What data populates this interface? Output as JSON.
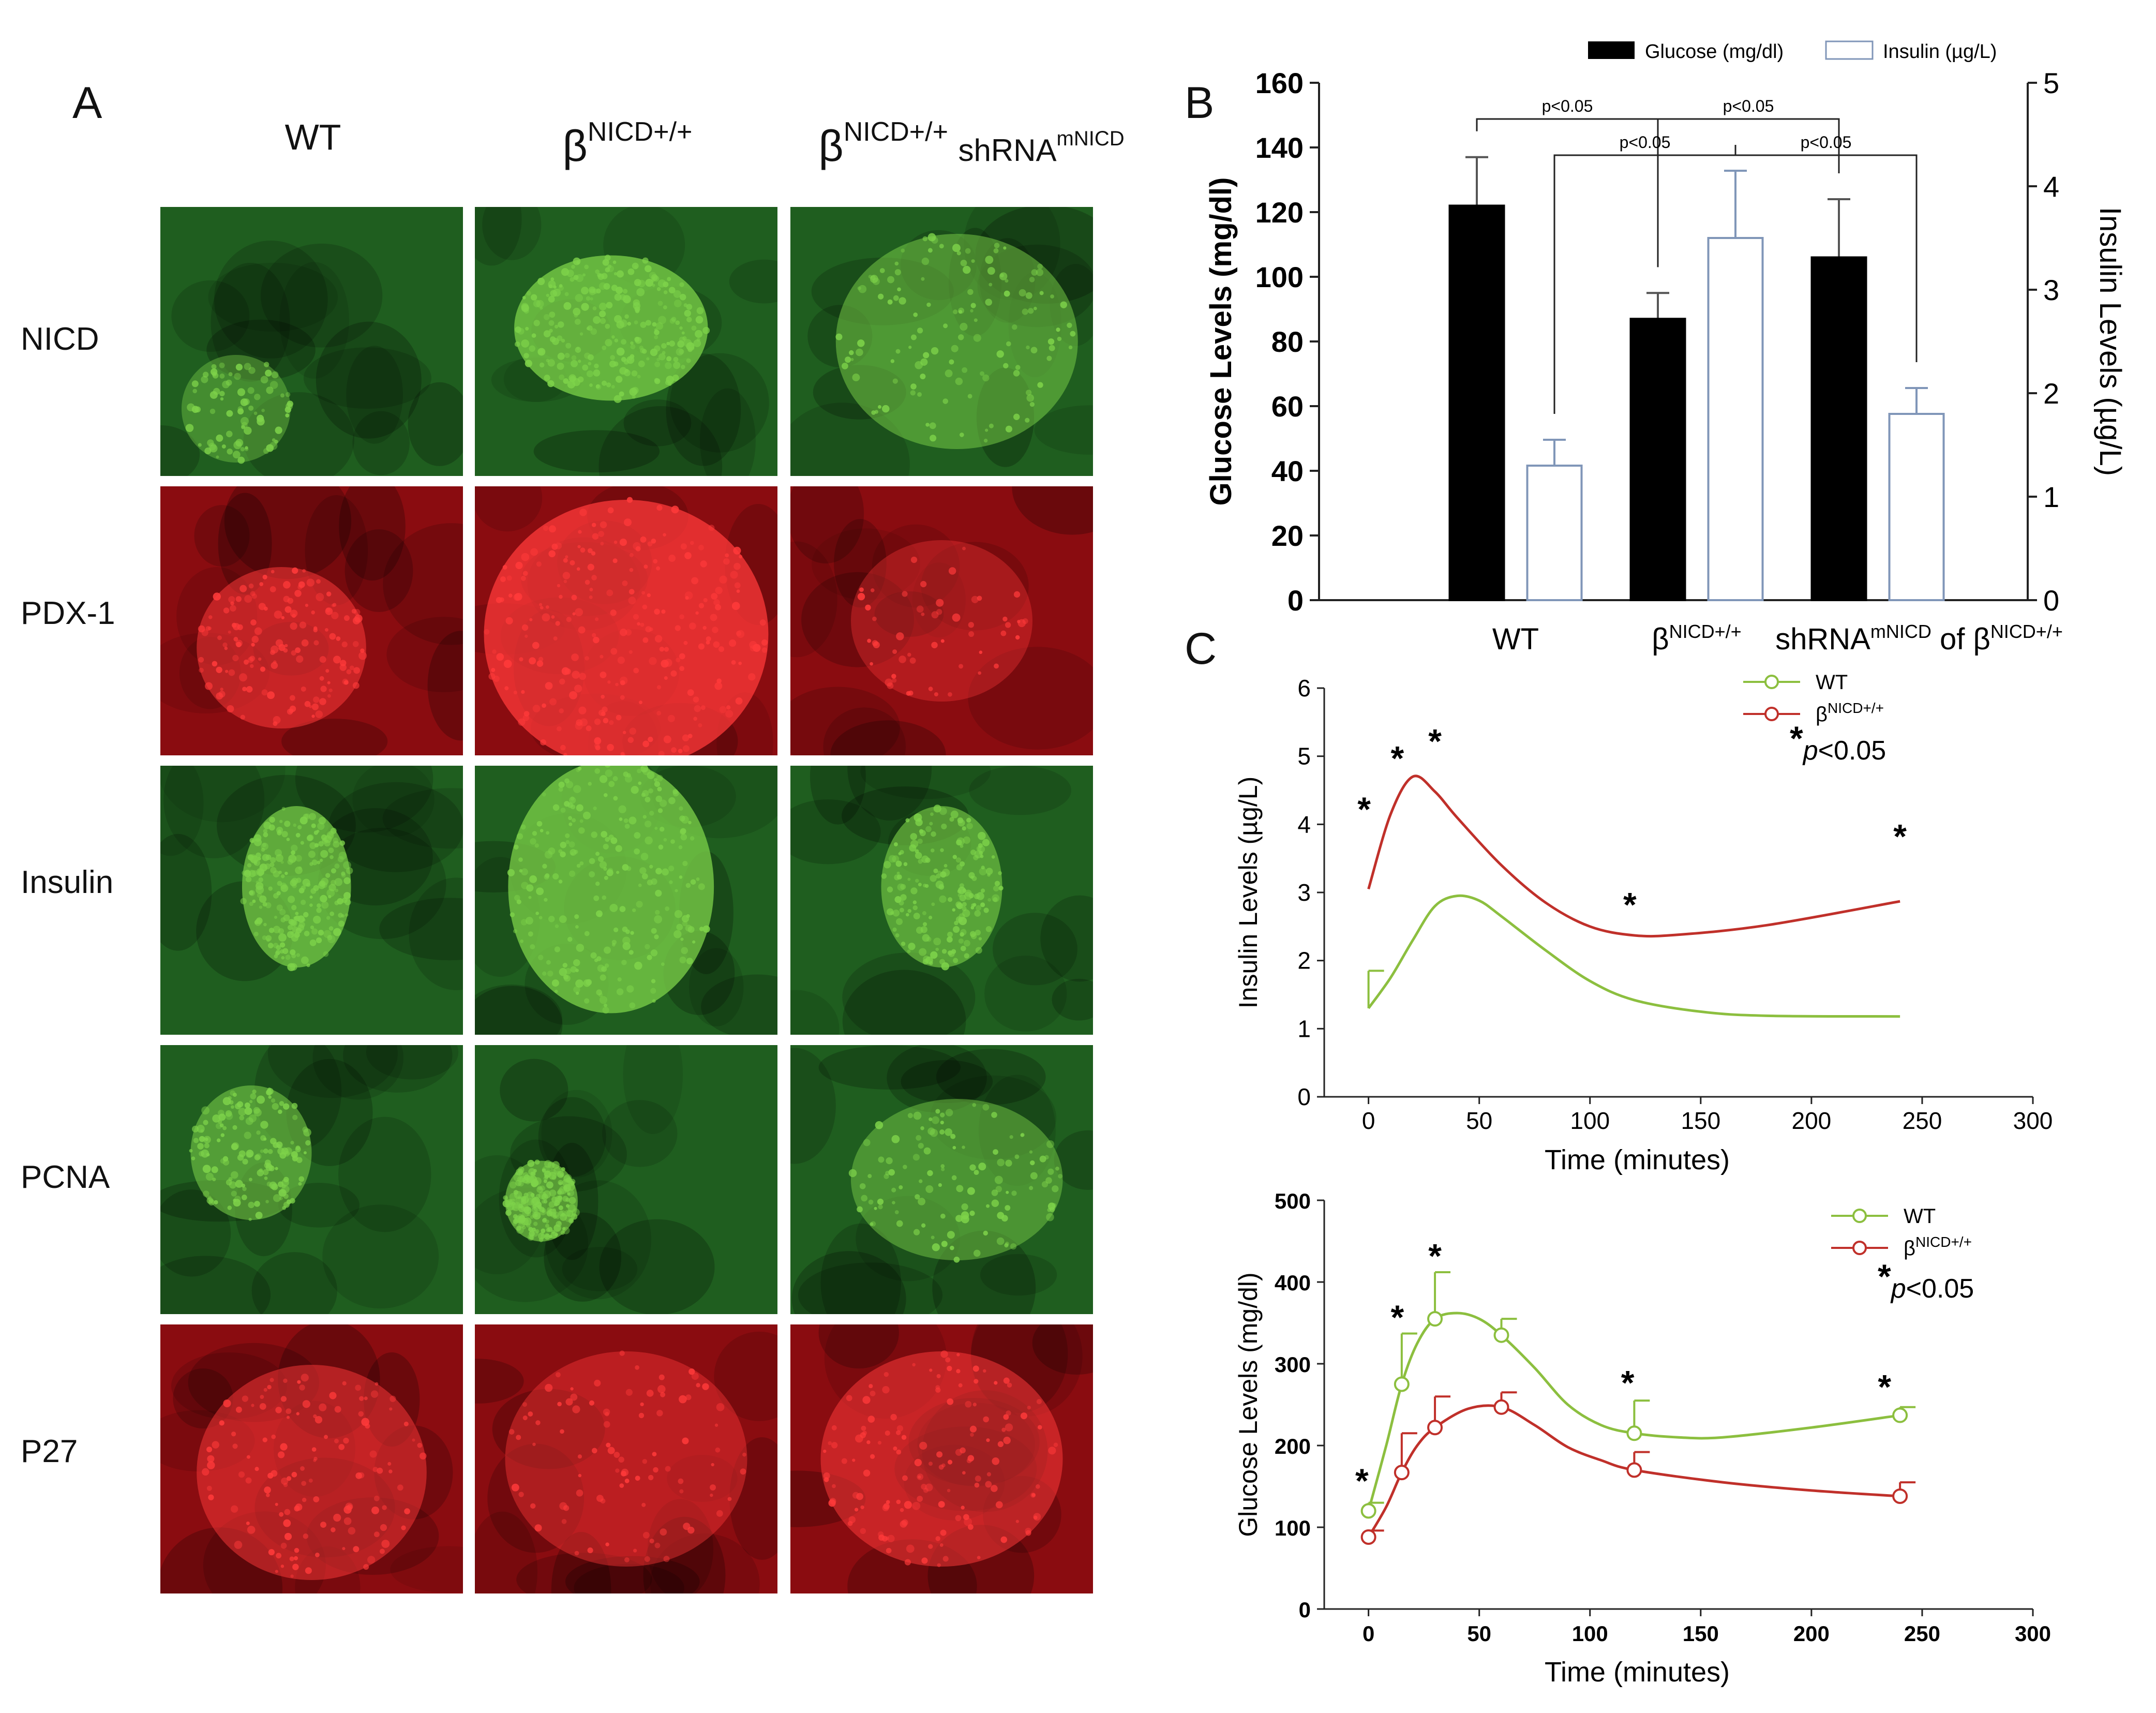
{
  "panel_a": {
    "letter": "A",
    "columns": [
      {
        "main": "WT",
        "sup": "",
        "suffix": "",
        "suffix_sup": ""
      },
      {
        "main": "β",
        "sup": "NICD+/+",
        "suffix": "",
        "suffix_sup": ""
      },
      {
        "main": "β",
        "sup": "NICD+/+",
        "suffix": "shRNA",
        "suffix_sup": "mNICD"
      }
    ],
    "rows": [
      {
        "label": "NICD",
        "stain": "green"
      },
      {
        "label": "PDX-1",
        "stain": "red"
      },
      {
        "label": "Insulin",
        "stain": "green"
      },
      {
        "label": "PCNA",
        "stain": "green"
      },
      {
        "label": "P27",
        "stain": "red"
      }
    ],
    "colors": {
      "green": "#1f5e1f",
      "green_bright": "#7ed34a",
      "red": "#8a0c10",
      "red_bright": "#ff3a3a"
    }
  },
  "chart_data": [
    {
      "panel": "B",
      "type": "bar",
      "legend": [
        "Glucose (mg/dl)",
        "Insulin (µg/L)"
      ],
      "legend_placement": "top",
      "categories": [
        {
          "main": "WT",
          "sup": "",
          "tail": "",
          "tail_sup": ""
        },
        {
          "main": "β",
          "sup": "NICD+/+",
          "tail": "",
          "tail_sup": ""
        },
        {
          "main": "shRNA",
          "sup": "mNICD",
          "tail": " of β",
          "tail_sup": "NICD+/+"
        }
      ],
      "series": [
        {
          "name": "Glucose (mg/dl)",
          "axis": "left",
          "fill": "#000000",
          "values": [
            122,
            87,
            106
          ],
          "errors": [
            15,
            8,
            18
          ]
        },
        {
          "name": "Insulin (µg/L)",
          "axis": "right",
          "fill": "#ffffff",
          "stroke": "#8096b8",
          "values": [
            1.3,
            3.5,
            1.8
          ],
          "errors": [
            0.25,
            0.65,
            0.25
          ]
        }
      ],
      "ylabel": "Glucose Levels (mg/dl)",
      "ylim": [
        0,
        160
      ],
      "yticks": [
        0,
        20,
        40,
        60,
        80,
        100,
        120,
        140,
        160
      ],
      "y2label": "Insulin Levels (µg/L)",
      "y2lim": [
        0,
        5
      ],
      "y2ticks": [
        0,
        1,
        2,
        3,
        4,
        5
      ],
      "significance": [
        {
          "label": "p<0.05",
          "from": [
            0,
            "Glucose (mg/dl)"
          ],
          "to": [
            1,
            "Glucose (mg/dl)"
          ]
        },
        {
          "label": "p<0.05",
          "from": [
            1,
            "Glucose (mg/dl)"
          ],
          "to": [
            2,
            "Glucose (mg/dl)"
          ]
        },
        {
          "label": "p<0.05",
          "from": [
            0,
            "Insulin (µg/L)"
          ],
          "to": [
            1,
            "Insulin (µg/L)"
          ]
        },
        {
          "label": "p<0.05",
          "from": [
            1,
            "Insulin (µg/L)"
          ],
          "to": [
            2,
            "Insulin (µg/L)"
          ]
        }
      ]
    },
    {
      "panel": "C",
      "type": "line",
      "ylabel": "Insulin Levels (µg/L)",
      "xlabel": "Time (minutes)",
      "xlim": [
        -20,
        300
      ],
      "xticks": [
        0,
        50,
        100,
        150,
        200,
        250,
        300
      ],
      "ylim": [
        0,
        6
      ],
      "yticks": [
        0,
        1,
        2,
        3,
        4,
        5,
        6
      ],
      "series": [
        {
          "name": "WT",
          "name_sup": "",
          "color": "#8cbf3f",
          "curve": [
            [
              0,
              1.3
            ],
            [
              10,
              1.75
            ],
            [
              20,
              2.3
            ],
            [
              30,
              2.8
            ],
            [
              40,
              2.95
            ],
            [
              50,
              2.88
            ],
            [
              60,
              2.65
            ],
            [
              80,
              2.15
            ],
            [
              100,
              1.7
            ],
            [
              120,
              1.42
            ],
            [
              150,
              1.25
            ],
            [
              180,
              1.19
            ],
            [
              240,
              1.18
            ]
          ],
          "error": [
            [
              0,
              1.85
            ]
          ]
        },
        {
          "name": "β",
          "name_sup": "NICD+/+",
          "color": "#c0302a",
          "curve": [
            [
              0,
              3.05
            ],
            [
              10,
              4.15
            ],
            [
              20,
              4.7
            ],
            [
              30,
              4.48
            ],
            [
              40,
              4.1
            ],
            [
              60,
              3.4
            ],
            [
              80,
              2.85
            ],
            [
              100,
              2.5
            ],
            [
              120,
              2.37
            ],
            [
              140,
              2.38
            ],
            [
              180,
              2.52
            ],
            [
              240,
              2.87
            ]
          ]
        }
      ],
      "stars": [
        [
          -2,
          4.2
        ],
        [
          13,
          4.95
        ],
        [
          30,
          5.2
        ],
        [
          118,
          2.8
        ],
        [
          240,
          3.8
        ]
      ],
      "annotation": {
        "star": "*",
        "text": "p",
        "tail": "<0.05"
      }
    },
    {
      "type": "line",
      "ylabel": "Glucose Levels (mg/dl)",
      "xlabel": "Time (minutes)",
      "xlim": [
        -20,
        300
      ],
      "xticks": [
        0,
        50,
        100,
        150,
        200,
        250,
        300
      ],
      "ylim": [
        0,
        500
      ],
      "yticks": [
        0,
        100,
        200,
        300,
        400,
        500
      ],
      "series": [
        {
          "name": "WT",
          "name_sup": "",
          "color": "#8cbf3f",
          "points": [
            [
              0,
              120
            ],
            [
              15,
              275
            ],
            [
              30,
              355
            ],
            [
              60,
              335
            ],
            [
              120,
              215
            ],
            [
              240,
              237
            ]
          ],
          "errors": [
            [
              0,
              130
            ],
            [
              15,
              337
            ],
            [
              30,
              412
            ],
            [
              60,
              355
            ],
            [
              120,
              255
            ],
            [
              240,
              247
            ]
          ],
          "curve": [
            [
              0,
              120
            ],
            [
              8,
              200
            ],
            [
              15,
              275
            ],
            [
              22,
              325
            ],
            [
              30,
              355
            ],
            [
              40,
              362
            ],
            [
              50,
              355
            ],
            [
              60,
              335
            ],
            [
              75,
              295
            ],
            [
              90,
              250
            ],
            [
              105,
              225
            ],
            [
              120,
              215
            ],
            [
              140,
              210
            ],
            [
              160,
              210
            ],
            [
              200,
              222
            ],
            [
              240,
              237
            ]
          ]
        },
        {
          "name": "β",
          "name_sup": "NICD+/+",
          "color": "#c0302a",
          "points": [
            [
              0,
              88
            ],
            [
              15,
              167
            ],
            [
              30,
              222
            ],
            [
              60,
              247
            ],
            [
              120,
              170
            ],
            [
              240,
              138
            ]
          ],
          "errors": [
            [
              0,
              96
            ],
            [
              15,
              215
            ],
            [
              30,
              260
            ],
            [
              60,
              265
            ],
            [
              120,
              192
            ],
            [
              240,
              155
            ]
          ],
          "curve": [
            [
              0,
              88
            ],
            [
              8,
              125
            ],
            [
              15,
              167
            ],
            [
              22,
              200
            ],
            [
              30,
              222
            ],
            [
              45,
              245
            ],
            [
              60,
              247
            ],
            [
              75,
              225
            ],
            [
              90,
              198
            ],
            [
              105,
              182
            ],
            [
              120,
              170
            ],
            [
              160,
              155
            ],
            [
              200,
              145
            ],
            [
              240,
              138
            ]
          ]
        }
      ],
      "stars": [
        [
          -3,
          155
        ],
        [
          13,
          355
        ],
        [
          30,
          430
        ],
        [
          117,
          275
        ],
        [
          233,
          270
        ]
      ],
      "annotation": {
        "star": "*",
        "text": "p",
        "tail": "<0.05"
      }
    }
  ],
  "panel_b_letter": "B",
  "panel_c_letter": "C"
}
